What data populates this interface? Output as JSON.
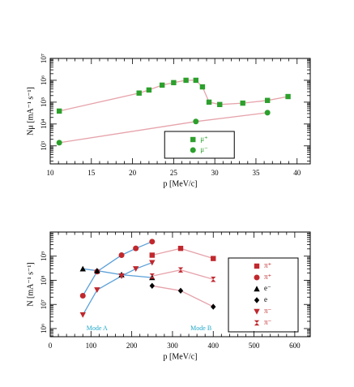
{
  "chart_data": [
    {
      "type": "scatter",
      "x_label": "p [MeV/c]",
      "y_label": "Nμ [mA⁻¹ s⁻¹]",
      "xlim": [
        10,
        41.6
      ],
      "xticks": [
        10,
        15,
        20,
        25,
        30,
        35,
        40
      ],
      "ylim": [
        150,
        10000000
      ],
      "log_y": true,
      "yticks": [
        {
          "value": 1000,
          "label": "10³"
        },
        {
          "value": 10000,
          "label": "10⁴"
        },
        {
          "value": 100000,
          "label": "10⁵"
        },
        {
          "value": 1000000,
          "label": "10⁶"
        },
        {
          "value": 10000000,
          "label": "10⁷"
        }
      ],
      "legend": "lower center",
      "series": [
        {
          "name": "μ⁺",
          "color": "#2ca02c",
          "line_color": "#e6a3ab",
          "marker": "square",
          "x": [
            11.1,
            20.8,
            22.0,
            23.6,
            25.0,
            26.5,
            27.7,
            28.5,
            29.3,
            30.6,
            33.4,
            36.4,
            38.9
          ],
          "values": [
            39000,
            260000,
            360000,
            600000,
            780000,
            1000000,
            1000000,
            500000,
            100000,
            78000,
            90000,
            120000,
            180000
          ]
        },
        {
          "name": "μ⁻",
          "color": "#2ca02c",
          "line_color": "#e6a3ab",
          "marker": "circle",
          "x": [
            11.1,
            27.7,
            36.4
          ],
          "values": [
            1400,
            13000,
            33000
          ]
        }
      ]
    },
    {
      "type": "scatter",
      "x_label": "p [MeV/c]",
      "y_label": "N [mA⁻¹ s⁻¹]",
      "xlim": [
        0,
        638
      ],
      "xticks": [
        0,
        100,
        200,
        300,
        400,
        500,
        600
      ],
      "ylim": [
        460000,
        10000000000
      ],
      "log_y": true,
      "yticks": [
        {
          "value": 1000000,
          "label": "10⁶"
        },
        {
          "value": 10000000,
          "label": "10⁷"
        },
        {
          "value": 100000000,
          "label": "10⁸"
        },
        {
          "value": 1000000000,
          "label": "10⁹"
        }
      ],
      "legend": "right",
      "annotations": [
        "Mode A",
        "Mode B"
      ],
      "annotation_color": "#1fa8c9",
      "series": [
        {
          "name": "π⁺",
          "color": "#c0282d",
          "line_color": "#e6a3ab",
          "marker": "square",
          "x": [
            250,
            320,
            400
          ],
          "values": [
            1100000000,
            2100000000,
            800000000
          ]
        },
        {
          "name": "π⁺",
          "color": "#c0282d",
          "line_color": "#5aa0d8",
          "marker": "circle",
          "x": [
            80,
            115,
            175,
            210,
            250
          ],
          "values": [
            23000000,
            230000000,
            1100000000,
            2100000000,
            4000000000
          ]
        },
        {
          "name": "e⁻",
          "color": "#000000",
          "line_color": "#5aa0d8",
          "marker": "triangle",
          "x": [
            80,
            115,
            175,
            250
          ],
          "values": [
            300000000,
            250000000,
            170000000,
            130000000
          ]
        },
        {
          "name": "e",
          "color": "#000000",
          "line_color": "#e6a3ab",
          "marker": "diamond",
          "x": [
            250,
            320,
            400
          ],
          "values": [
            59000000,
            37000000,
            8000000
          ]
        },
        {
          "name": "π⁻",
          "color": "#c0282d",
          "line_color": "#5aa0d8",
          "marker": "triangle-down",
          "x": [
            80,
            115,
            175,
            210,
            250
          ],
          "values": [
            3700000,
            40000000,
            150000000,
            300000000,
            540000000
          ]
        },
        {
          "name": "π⁻",
          "color": "#c0282d",
          "line_color": "#e6a3ab",
          "marker": "bowtie",
          "x": [
            250,
            320,
            400
          ],
          "values": [
            150000000,
            270000000,
            110000000
          ]
        }
      ]
    }
  ]
}
